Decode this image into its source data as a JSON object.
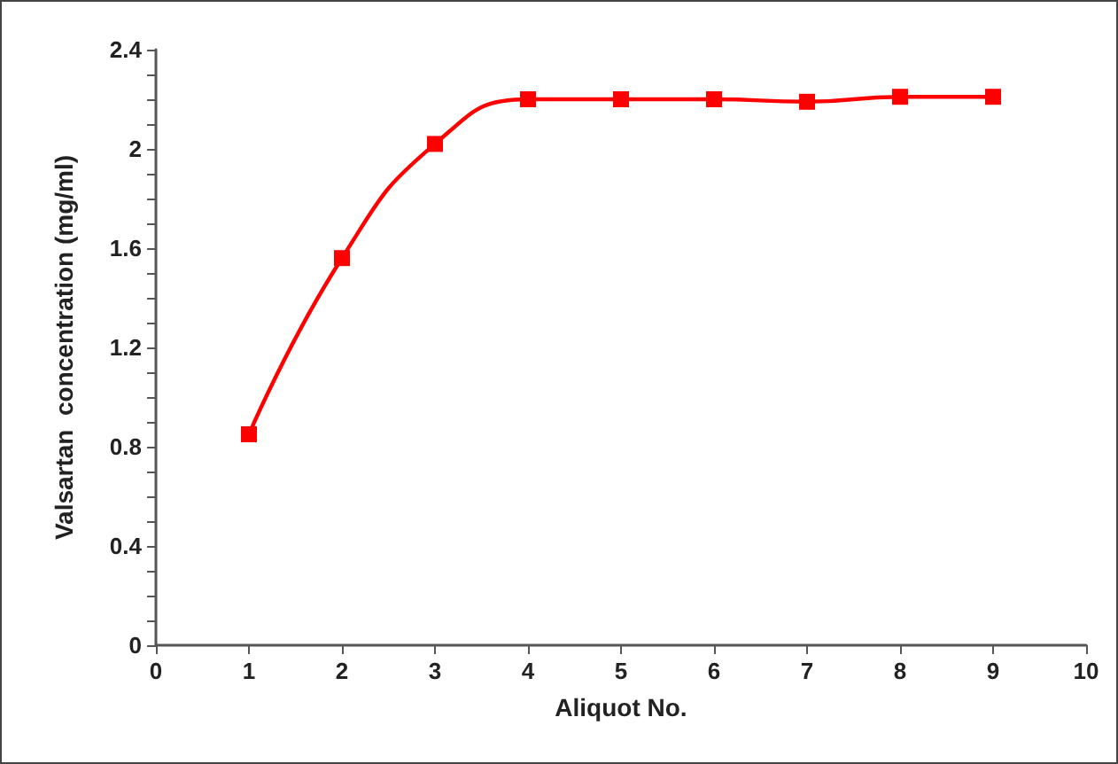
{
  "chart_data": {
    "type": "line",
    "xlabel": "Aliquot No.",
    "ylabel": "Valsartan  concentration (mg/ml)",
    "x": [
      1,
      2,
      3,
      4,
      5,
      6,
      7,
      8,
      9
    ],
    "series": [
      {
        "color": "#ff0000",
        "values": [
          0.85,
          1.56,
          2.02,
          2.2,
          2.2,
          2.2,
          2.19,
          2.21,
          2.21
        ]
      }
    ],
    "marker": "square",
    "line_style": "solid",
    "grid": false,
    "xlim": [
      0,
      10
    ],
    "xticks": [
      0,
      1,
      2,
      3,
      4,
      5,
      6,
      7,
      8,
      9,
      10
    ],
    "ylim": [
      0,
      2.4
    ],
    "yticks": [
      0,
      {
        "value": 0.1,
        "label": null
      },
      {
        "value": 0.2,
        "label": null
      },
      {
        "value": 0.3,
        "label": null
      },
      0.4,
      {
        "value": 0.5,
        "label": null
      },
      {
        "value": 0.6,
        "label": null
      },
      {
        "value": 0.7,
        "label": null
      },
      0.8,
      {
        "value": 0.9,
        "label": null
      },
      {
        "value": 1.0,
        "label": null
      },
      {
        "value": 1.1,
        "label": null
      },
      1.2,
      {
        "value": 1.3,
        "label": null
      },
      {
        "value": 1.4,
        "label": null
      },
      {
        "value": 1.5,
        "label": null
      },
      1.6,
      {
        "value": 1.7,
        "label": null
      },
      {
        "value": 1.8,
        "label": null
      },
      {
        "value": 1.9,
        "label": null
      },
      2,
      {
        "value": 2.1,
        "label": null
      },
      {
        "value": 2.2,
        "label": null
      },
      {
        "value": 2.3,
        "label": null
      },
      2.4
    ]
  }
}
